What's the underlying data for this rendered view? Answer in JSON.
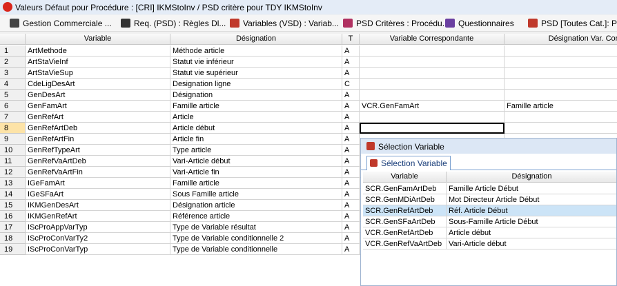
{
  "window": {
    "title": "Valeurs Défaut pour Procédure : [CRI] IKMStoInv / PSD critère pour TDY IKMStoInv"
  },
  "toolbar": [
    "Gestion Commerciale ...",
    "Req. (PSD) : Règles Dl...",
    "Variables (VSD) : Variab...",
    "PSD Critères : Procédu...",
    "Questionnaires",
    "PSD [Toutes Cat.]: Pr"
  ],
  "table": {
    "columns": [
      "Variable",
      "Désignation",
      "T",
      "Variable Correspondante",
      "Désignation Var. Cor"
    ],
    "rows": [
      {
        "n": "1",
        "variable": "ArtMethode",
        "designation": "Méthode article",
        "t": "A"
      },
      {
        "n": "2",
        "variable": "ArtStaVieInf",
        "designation": "Statut vie inférieur",
        "t": "A"
      },
      {
        "n": "3",
        "variable": "ArtStaVieSup",
        "designation": "Statut vie supérieur",
        "t": "A"
      },
      {
        "n": "4",
        "variable": "CdeLigDesArt",
        "designation": "Designation ligne",
        "t": "C"
      },
      {
        "n": "5",
        "variable": "GenDesArt",
        "designation": "Désignation",
        "t": "A"
      },
      {
        "n": "6",
        "variable": "GenFamArt",
        "designation": "Famille article",
        "t": "A",
        "var_corresp": "VCR.GenFamArt",
        "desig_var": "Famille article"
      },
      {
        "n": "7",
        "variable": "GenRefArt",
        "designation": "Article",
        "t": "A"
      },
      {
        "n": "8",
        "variable": "GenRefArtDeb",
        "designation": "Article début",
        "t": "A"
      },
      {
        "n": "9",
        "variable": "GenRefArtFin",
        "designation": "Article fin",
        "t": "A"
      },
      {
        "n": "10",
        "variable": "GenRefTypeArt",
        "designation": "Type article",
        "t": "A"
      },
      {
        "n": "11",
        "variable": "GenRefVaArtDeb",
        "designation": "Vari-Article début",
        "t": "A"
      },
      {
        "n": "12",
        "variable": "GenRefVaArtFin",
        "designation": "Vari-Article fin",
        "t": "A"
      },
      {
        "n": "13",
        "variable": "IGeFamArt",
        "designation": "Famille article",
        "t": "A"
      },
      {
        "n": "14",
        "variable": "IGeSFaArt",
        "designation": "Sous Famille article",
        "t": "A"
      },
      {
        "n": "15",
        "variable": "IKMGenDesArt",
        "designation": "Désignation article",
        "t": "A"
      },
      {
        "n": "16",
        "variable": "IKMGenRefArt",
        "designation": "Référence article",
        "t": "A"
      },
      {
        "n": "17",
        "variable": "IScProAppVarTyp",
        "designation": "Type de Variable résultat",
        "t": "A"
      },
      {
        "n": "18",
        "variable": "IScProConVarTy2",
        "designation": "Type de Variable conditionnelle 2",
        "t": "A"
      },
      {
        "n": "19",
        "variable": "IScProConVarTyp",
        "designation": "Type de Variable conditionnelle",
        "t": "A"
      }
    ]
  },
  "popup": {
    "title": "Sélection Variable",
    "tab": "Sélection Variable",
    "columns": [
      "Variable",
      "Désignation"
    ],
    "rows": [
      [
        "SCR.GenFamArtDeb",
        "Famille Article Début"
      ],
      [
        "SCR.GenMDiArtDeb",
        "Mot Directeur Article Début"
      ],
      [
        "SCR.GenRefArtDeb",
        "Réf. Article Début"
      ],
      [
        "SCR.GenSFaArtDeb",
        "Sous-Famille Article Début"
      ],
      [
        "VCR.GenRefArtDeb",
        "Article début"
      ],
      [
        "VCR.GenRefVaArtDeb",
        "Vari-Article début"
      ]
    ]
  }
}
